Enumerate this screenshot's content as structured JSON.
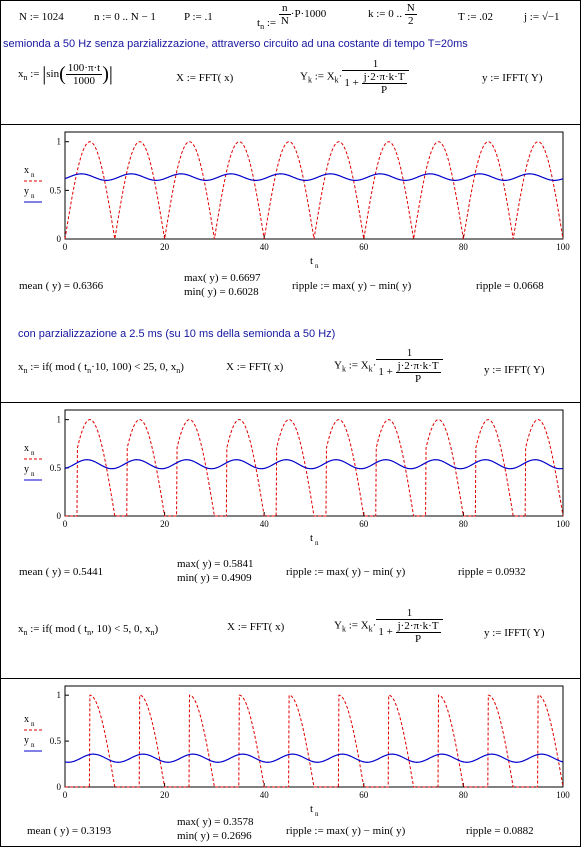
{
  "header": {
    "def_N": "N := 1024",
    "def_n": "n := 0 .. N − 1",
    "def_P": "P := .1",
    "def_tn_lhs": "t",
    "def_tn_sub": "n",
    "def_tn_assign": ":=",
    "def_tn_num": "n",
    "def_tn_den": "N",
    "def_tn_rest": "·P·1000",
    "def_k": "k := 0 ..",
    "def_k_num": "N",
    "def_k_den": "2",
    "def_T": "T := .02",
    "def_j": "j := √−1"
  },
  "section1": {
    "title": "semionda a 50 Hz    senza  parzializzazione, attraverso circuito ad una costante di tempo T=20ms",
    "x_def_lhs": "x",
    "x_def_mid": "sin",
    "x_def_num": "100·π·t",
    "x_def_den": "1000",
    "fft": "X := FFT( x)",
    "yk_lhs": "Y",
    "yk_mid": ":= X",
    "yk_num": "1",
    "yk_den_top": "j·2·π·k·T",
    "yk_den_bot": "P",
    "yk_one_plus": "1 +",
    "ifft": "y := IFFT( Y)",
    "mean": "mean ( y) = 0.6366",
    "max": "max( y) = 0.6697",
    "min": "min( y) = 0.6028",
    "ripple_def": "ripple := max( y) − min( y)",
    "ripple_val": "ripple = 0.0668"
  },
  "section2": {
    "title": "con parzializzazione a 2.5 ms (su 10 ms della semionda a 50 Hz)",
    "x_def": "x",
    "x_def_rest": ":= if( mod ( t",
    "x_def_tail": "·10, 100) < 25, 0, x",
    "fft": "X := FFT( x)",
    "yk_lhs": "Y",
    "yk_mid": ":= X",
    "yk_num": "1",
    "yk_den_top": "j·2·π·k·T",
    "yk_den_bot": "P",
    "yk_one_plus": "1 +",
    "ifft": "y := IFFT( Y)",
    "mean": "mean ( y) = 0.5441",
    "max": "max( y) = 0.5841",
    "min": "min( y) = 0.4909",
    "ripple_def": "ripple := max( y) − min( y)",
    "ripple_val": "ripple = 0.0932"
  },
  "section3": {
    "x_def": "x",
    "x_def_rest": ":= if( mod ( t",
    "x_def_tail": ", 10) < 5, 0, x",
    "fft": "X := FFT( x)",
    "yk_lhs": "Y",
    "yk_mid": ":= X",
    "yk_num": "1",
    "yk_den_top": "j·2·π·k·T",
    "yk_den_bot": "P",
    "yk_one_plus": "1 +",
    "ifft": "y := IFFT( Y)",
    "mean": "mean ( y) = 0.3193",
    "max": "max( y) = 0.3578",
    "min": "min( y) = 0.2696",
    "ripple_def": "ripple := max( y) − min( y)",
    "ripple_val": "ripple = 0.0882"
  },
  "plot_labels": {
    "x_name": "x",
    "y_name": "y",
    "sub": "n",
    "xaxis_name": "t",
    "xaxis_sub": "n"
  },
  "chart_data": [
    {
      "type": "line",
      "xlim": [
        0,
        100
      ],
      "ylim": [
        0,
        1.1
      ],
      "x_ticks": [
        "0",
        "20",
        "40",
        "60",
        "80",
        "100"
      ],
      "y_ticks": [
        "0",
        "0.5",
        "1"
      ],
      "series": [
        {
          "name": "x_n",
          "kind": "rectified_sine",
          "period_ms": 10,
          "cutoff_ms": 0,
          "color": "#e00000",
          "dash": true
        },
        {
          "name": "y_n",
          "mean": 0.6366,
          "min": 0.6028,
          "max": 0.6697,
          "color": "#0000cc",
          "dash": false
        }
      ]
    },
    {
      "type": "line",
      "xlim": [
        0,
        100
      ],
      "ylim": [
        0,
        1.1
      ],
      "x_ticks": [
        "0",
        "20",
        "40",
        "60",
        "80",
        "100"
      ],
      "y_ticks": [
        "0",
        "0.5",
        "1"
      ],
      "series": [
        {
          "name": "x_n",
          "kind": "rectified_sine",
          "period_ms": 10,
          "cutoff_ms": 2.5,
          "color": "#e00000",
          "dash": true
        },
        {
          "name": "y_n",
          "mean": 0.5441,
          "min": 0.4909,
          "max": 0.5841,
          "color": "#0000cc",
          "dash": false
        }
      ]
    },
    {
      "type": "line",
      "xlim": [
        0,
        100
      ],
      "ylim": [
        0,
        1.1
      ],
      "x_ticks": [
        "0",
        "20",
        "40",
        "60",
        "80",
        "100"
      ],
      "y_ticks": [
        "0",
        "0.5",
        "1"
      ],
      "series": [
        {
          "name": "x_n",
          "kind": "rectified_sine",
          "period_ms": 10,
          "cutoff_ms": 5,
          "color": "#e00000",
          "dash": true
        },
        {
          "name": "y_n",
          "mean": 0.3193,
          "min": 0.2696,
          "max": 0.3578,
          "color": "#0000cc",
          "dash": false
        }
      ]
    }
  ]
}
